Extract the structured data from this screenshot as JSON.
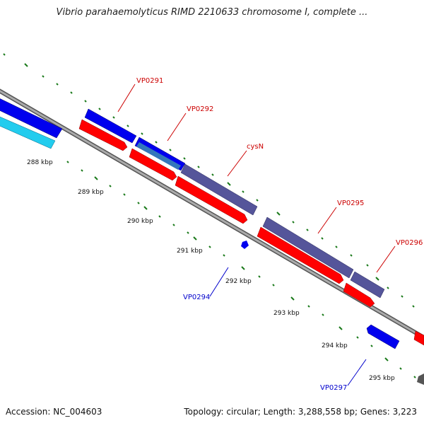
{
  "title": "Vibrio parahaemolyticus RIMD 2210633 chromosome I, complete ...",
  "accession_text": "Accession: NC_004603",
  "summary_text": "Topology: circular; Length: 3,288,558 bp; Genes: 3,223",
  "scale_labels": [
    "288 kbp",
    "289 kbp",
    "290 kbp",
    "291 kbp",
    "292 kbp",
    "293 kbp",
    "294 kbp",
    "295 kbp"
  ],
  "gene_labels": {
    "vp0291": "VP0291",
    "vp0292": "VP0292",
    "cysn": "cysN",
    "vp0295": "VP0295",
    "vp0296": "VP0296",
    "vp0294": "VP0294",
    "vp0297": "VP0297"
  },
  "colors": {
    "forward_label": "#cc0000",
    "reverse_label": "#0000cc",
    "cds_red": "#ff0000",
    "cds_blue": "#0000ee",
    "cds_cyan": "#22ccee",
    "cds_purple": "#55559a",
    "backbone": "#888888",
    "tick_green": "#1a7a1a"
  }
}
